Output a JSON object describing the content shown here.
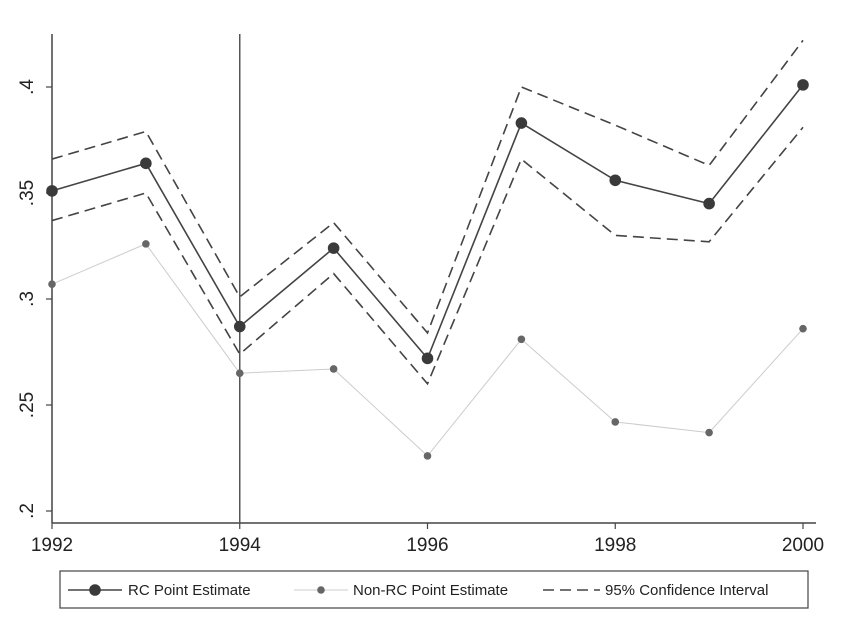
{
  "chart_data": {
    "type": "line",
    "title": "",
    "xlabel": "",
    "ylabel": "",
    "x": [
      1992,
      1993,
      1994,
      1995,
      1996,
      1997,
      1998,
      1999,
      2000
    ],
    "xlim": [
      1992,
      2000
    ],
    "ylim": [
      0.2,
      0.425
    ],
    "xticks": [
      1992,
      1994,
      1996,
      1998,
      2000
    ],
    "xtick_labels": [
      "1992",
      "1994",
      "1996",
      "1998",
      "2000"
    ],
    "yticks": [
      0.2,
      0.25,
      0.3,
      0.35,
      0.4
    ],
    "ytick_labels": [
      ".2",
      ".25",
      ".3",
      ".35",
      ".4"
    ],
    "vline": 1994,
    "grid": false,
    "legend_position": "bottom",
    "series": [
      {
        "name": "RC Point Estimate",
        "style": "solid-dark-markers",
        "color": "#444444",
        "values": [
          0.351,
          0.364,
          0.287,
          0.324,
          0.272,
          0.383,
          0.356,
          0.345,
          0.401
        ]
      },
      {
        "name": "Non-RC Point Estimate",
        "style": "solid-light-markers",
        "color": "#666666",
        "values": [
          0.307,
          0.326,
          0.265,
          0.267,
          0.226,
          0.281,
          0.242,
          0.237,
          0.286
        ]
      },
      {
        "name": "95% Confidence Interval",
        "style": "dashed",
        "color": "#444444",
        "upper": [
          0.366,
          0.379,
          0.301,
          0.336,
          0.284,
          0.4,
          0.382,
          0.363,
          0.422
        ],
        "lower": [
          0.337,
          0.35,
          0.274,
          0.312,
          0.26,
          0.366,
          0.33,
          0.327,
          0.381
        ]
      }
    ]
  }
}
